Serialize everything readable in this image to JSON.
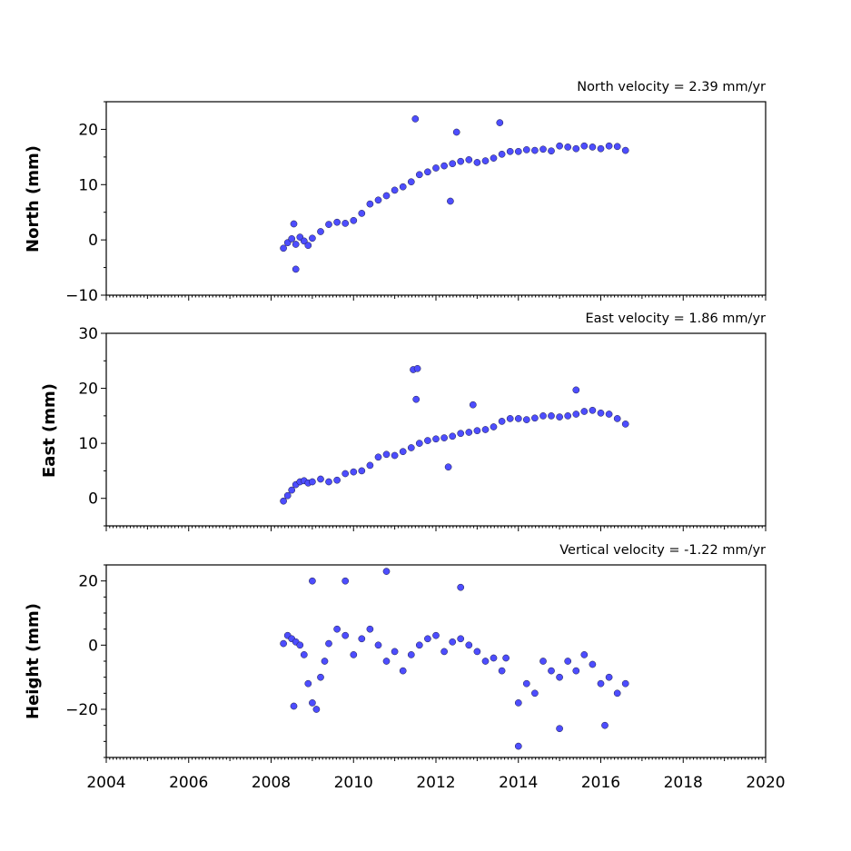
{
  "chart_data": [
    {
      "type": "scatter",
      "title": "North velocity = 2.39 mm/yr",
      "ylabel": "North (mm)",
      "xlim": [
        2004,
        2020
      ],
      "ylim": [
        -10,
        25
      ],
      "yticks": [
        -10,
        0,
        10,
        20
      ],
      "ytick_labels": [
        "−10",
        "0",
        "10",
        "20"
      ],
      "xtick_labels_visible": false,
      "grid": false,
      "marker_color": "#4d4dff",
      "series": [
        {
          "x": [
            2008.3,
            2008.4,
            2008.5,
            2008.6,
            2008.7,
            2008.8,
            2008.9,
            2009.0,
            2009.2,
            2009.4,
            2009.6,
            2009.8,
            2010.0,
            2010.2,
            2010.4,
            2010.6,
            2010.8,
            2011.0,
            2011.2,
            2011.4,
            2011.6,
            2011.8,
            2012.0,
            2012.2,
            2012.4,
            2012.6,
            2012.8,
            2013.0,
            2013.2,
            2013.4,
            2013.6,
            2013.8,
            2014.0,
            2014.2,
            2014.4,
            2014.6,
            2014.8,
            2015.0,
            2015.2,
            2015.4,
            2015.6,
            2015.8,
            2016.0,
            2016.2,
            2016.4,
            2016.6,
            2011.5,
            2013.55,
            2012.5,
            2012.35,
            2008.6,
            2008.55
          ],
          "y": [
            -1.5,
            -0.5,
            0.2,
            -0.8,
            0.5,
            -0.2,
            -1.0,
            0.3,
            1.5,
            2.8,
            3.2,
            3.0,
            3.5,
            4.8,
            6.5,
            7.2,
            8.0,
            9.0,
            9.6,
            10.5,
            11.8,
            12.3,
            13.0,
            13.4,
            13.8,
            14.2,
            14.5,
            14.0,
            14.3,
            14.8,
            15.5,
            16.0,
            16.0,
            16.3,
            16.2,
            16.4,
            16.1,
            17.0,
            16.8,
            16.5,
            17.0,
            16.8,
            16.5,
            17.0,
            16.9,
            16.2,
            21.9,
            21.2,
            19.5,
            7.0,
            -5.3,
            2.9
          ]
        }
      ]
    },
    {
      "type": "scatter",
      "title": "East velocity = 1.86 mm/yr",
      "ylabel": "East (mm)",
      "xlim": [
        2004,
        2020
      ],
      "ylim": [
        -5,
        30
      ],
      "yticks": [
        0,
        10,
        20,
        30
      ],
      "ytick_labels": [
        "0",
        "10",
        "20",
        "30"
      ],
      "xtick_labels_visible": false,
      "grid": false,
      "marker_color": "#4d4dff",
      "series": [
        {
          "x": [
            2008.3,
            2008.4,
            2008.5,
            2008.6,
            2008.7,
            2008.8,
            2008.9,
            2009.0,
            2009.2,
            2009.4,
            2009.6,
            2009.8,
            2010.0,
            2010.2,
            2010.4,
            2010.6,
            2010.8,
            2011.0,
            2011.2,
            2011.4,
            2011.6,
            2011.8,
            2012.0,
            2012.2,
            2012.4,
            2012.6,
            2012.8,
            2013.0,
            2013.2,
            2013.4,
            2013.6,
            2013.8,
            2014.0,
            2014.2,
            2014.4,
            2014.6,
            2014.8,
            2015.0,
            2015.2,
            2015.4,
            2015.6,
            2015.8,
            2016.0,
            2016.2,
            2016.4,
            2016.6,
            2011.45,
            2011.55,
            2011.52,
            2012.3,
            2012.9,
            2015.4
          ],
          "y": [
            -0.5,
            0.5,
            1.5,
            2.5,
            3.0,
            3.2,
            2.8,
            3.0,
            3.5,
            3.0,
            3.3,
            4.5,
            4.8,
            5.0,
            6.0,
            7.5,
            8.0,
            7.8,
            8.5,
            9.2,
            10.0,
            10.5,
            10.8,
            11.0,
            11.3,
            11.8,
            12.0,
            12.3,
            12.5,
            13.0,
            14.0,
            14.5,
            14.5,
            14.3,
            14.6,
            15.0,
            15.0,
            14.8,
            15.0,
            15.3,
            15.8,
            16.0,
            15.5,
            15.3,
            14.5,
            13.5,
            23.4,
            23.6,
            18.0,
            5.7,
            17.0,
            19.7
          ]
        }
      ]
    },
    {
      "type": "scatter",
      "title": "Vertical velocity = -1.22 mm/yr",
      "ylabel": "Height (mm)",
      "xlim": [
        2004,
        2020
      ],
      "ylim": [
        -35,
        25
      ],
      "yticks": [
        -20,
        0,
        20
      ],
      "ytick_labels": [
        "−20",
        "0",
        "20"
      ],
      "xticks": [
        2004,
        2006,
        2008,
        2010,
        2012,
        2014,
        2016,
        2018,
        2020
      ],
      "xtick_labels": [
        "2004",
        "2006",
        "2008",
        "2010",
        "2012",
        "2014",
        "2016",
        "2018",
        "2020"
      ],
      "xtick_labels_visible": true,
      "grid": false,
      "marker_color": "#4d4dff",
      "series": [
        {
          "x": [
            2008.3,
            2008.4,
            2008.5,
            2008.6,
            2008.7,
            2008.8,
            2008.9,
            2009.0,
            2009.1,
            2009.2,
            2009.3,
            2009.4,
            2009.6,
            2009.8,
            2010.0,
            2010.2,
            2010.4,
            2010.6,
            2010.8,
            2011.0,
            2011.2,
            2011.4,
            2011.6,
            2011.8,
            2012.0,
            2012.2,
            2012.4,
            2012.6,
            2012.8,
            2013.0,
            2013.2,
            2013.4,
            2013.6,
            2013.7,
            2014.0,
            2014.2,
            2014.4,
            2014.6,
            2014.8,
            2015.0,
            2015.2,
            2015.4,
            2015.6,
            2015.8,
            2016.0,
            2016.2,
            2016.4,
            2016.6,
            2009.0,
            2009.8,
            2010.8,
            2014.0,
            2015.0,
            2016.1,
            2008.55,
            2012.6
          ],
          "y": [
            0.5,
            3.0,
            2.0,
            1.0,
            0.0,
            -3.0,
            -12.0,
            -18.0,
            -20.0,
            -10.0,
            -5.0,
            0.5,
            5.0,
            3.0,
            -3.0,
            2.0,
            5.0,
            0.0,
            -5.0,
            -2.0,
            -8.0,
            -3.0,
            0.0,
            2.0,
            3.0,
            -2.0,
            1.0,
            2.0,
            0.0,
            -2.0,
            -5.0,
            -4.0,
            -8.0,
            -4.0,
            -18.0,
            -12.0,
            -15.0,
            -5.0,
            -8.0,
            -10.0,
            -5.0,
            -8.0,
            -3.0,
            -6.0,
            -12.0,
            -10.0,
            -15.0,
            -12.0,
            20.0,
            20.0,
            23.0,
            -31.5,
            -26.0,
            -25.0,
            -19.0,
            18.0
          ]
        }
      ]
    }
  ]
}
